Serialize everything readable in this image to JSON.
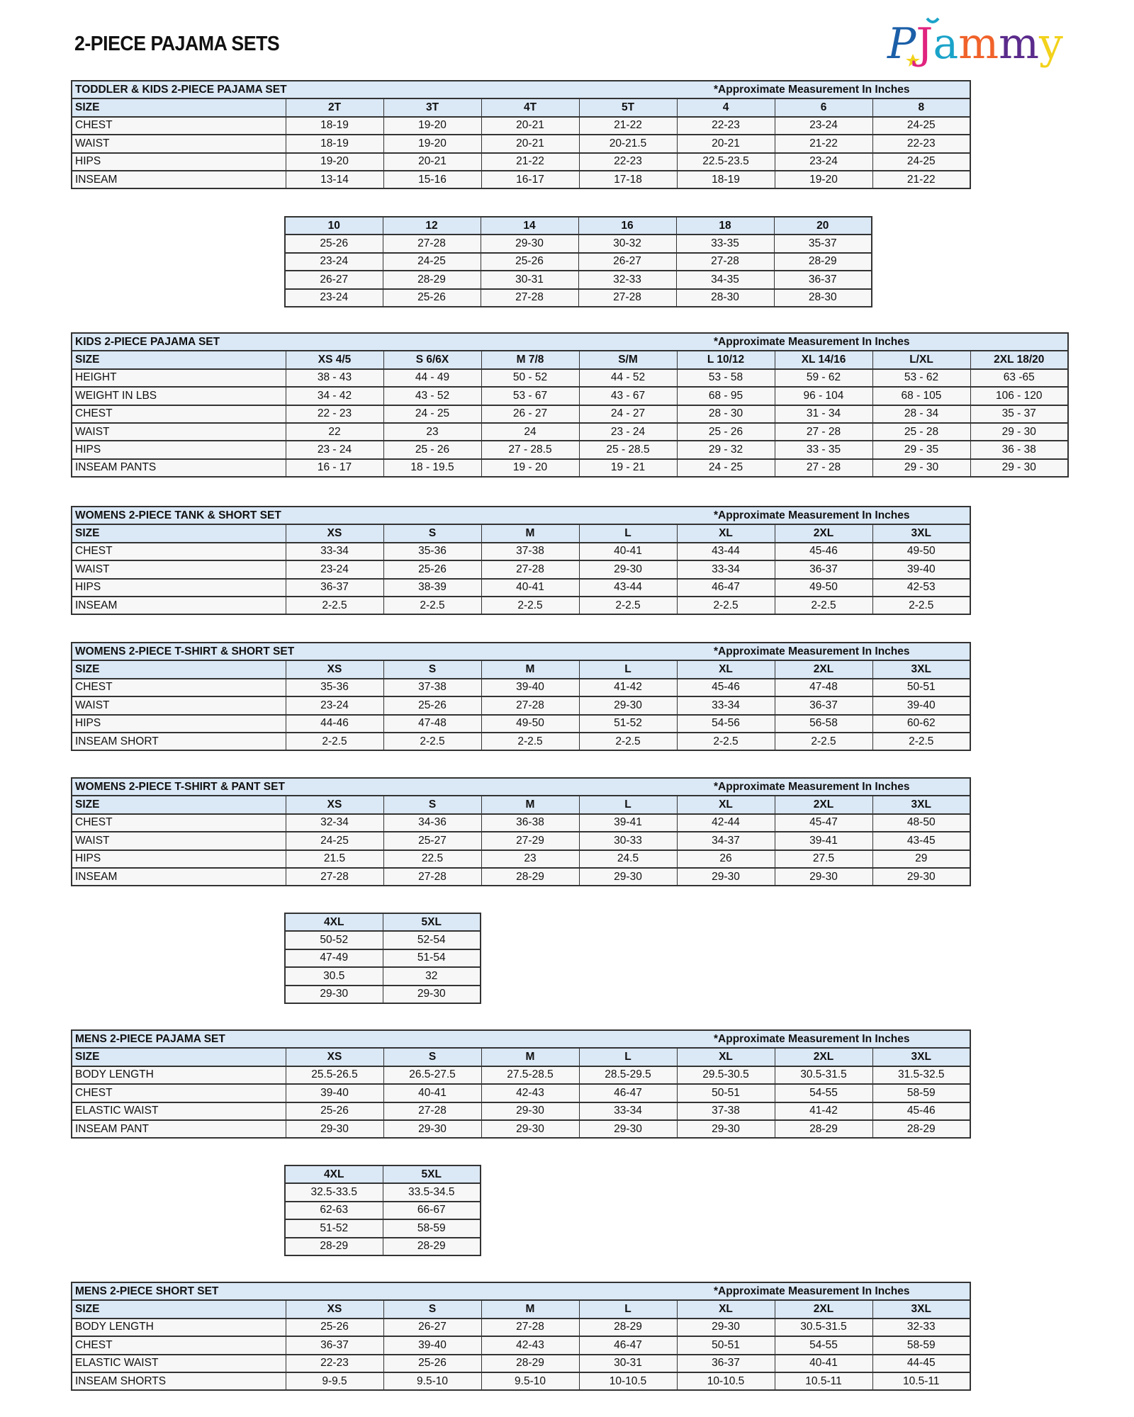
{
  "page_title": "2-PIECE PAJAMA SETS",
  "logo_text": "PJammy",
  "note": "*Approximate Measurement In Inches",
  "tables": [
    {
      "title": "TODDLER & KIDS 2-PIECE PAJAMA SET",
      "header": [
        "SIZE",
        "2T",
        "3T",
        "4T",
        "5T",
        "4",
        "6",
        "8"
      ],
      "rows": [
        [
          "CHEST",
          "18-19",
          "19-20",
          "20-21",
          "21-22",
          "22-23",
          "23-24",
          "24-25"
        ],
        [
          "WAIST",
          "18-19",
          "19-20",
          "20-21",
          "20-21.5",
          "20-21",
          "21-22",
          "22-23"
        ],
        [
          "HIPS",
          "19-20",
          "20-21",
          "21-22",
          "22-23",
          "22.5-23.5",
          "23-24",
          "24-25"
        ],
        [
          "INSEAM",
          "13-14",
          "15-16",
          "16-17",
          "17-18",
          "18-19",
          "19-20",
          "21-22"
        ]
      ]
    },
    {
      "continuation": true,
      "header": [
        "10",
        "12",
        "14",
        "16",
        "18",
        "20"
      ],
      "rows": [
        [
          "25-26",
          "27-28",
          "29-30",
          "30-32",
          "33-35",
          "35-37"
        ],
        [
          "23-24",
          "24-25",
          "25-26",
          "26-27",
          "27-28",
          "28-29"
        ],
        [
          "26-27",
          "28-29",
          "30-31",
          "32-33",
          "34-35",
          "36-37"
        ],
        [
          "23-24",
          "25-26",
          "27-28",
          "27-28",
          "28-30",
          "28-30"
        ]
      ]
    },
    {
      "title": "KIDS 2-PIECE PAJAMA SET",
      "header": [
        "SIZE",
        "XS 4/5",
        "S 6/6X",
        "M 7/8",
        "S/M",
        "L 10/12",
        "XL 14/16",
        "L/XL",
        "2XL 18/20"
      ],
      "rows": [
        [
          "HEIGHT",
          "38 - 43",
          "44 - 49",
          "50 - 52",
          "44 - 52",
          "53 - 58",
          "59 - 62",
          "53 - 62",
          "63 -65"
        ],
        [
          "WEIGHT IN LBS",
          "34 - 42",
          "43 - 52",
          "53 - 67",
          "43 - 67",
          "68 - 95",
          "96 - 104",
          "68 - 105",
          "106 - 120"
        ],
        [
          "CHEST",
          "22 - 23",
          "24 - 25",
          "26 - 27",
          "24 - 27",
          "28 - 30",
          "31 - 34",
          "28 - 34",
          "35 - 37"
        ],
        [
          "WAIST",
          "22",
          "23",
          "24",
          "23 - 24",
          "25 - 26",
          "27 - 28",
          "25 - 28",
          "29 - 30"
        ],
        [
          "HIPS",
          "23 - 24",
          "25 - 26",
          "27 - 28.5",
          "25 - 28.5",
          "29 - 32",
          "33 - 35",
          "29 - 35",
          "36 - 38"
        ],
        [
          "INSEAM PANTS",
          "16 - 17",
          "18 - 19.5",
          "19 - 20",
          "19 - 21",
          "24 - 25",
          "27 - 28",
          "29 - 30",
          "29 - 30"
        ]
      ]
    },
    {
      "title": "WOMENS 2-PIECE TANK & SHORT SET",
      "header": [
        "SIZE",
        "XS",
        "S",
        "M",
        "L",
        "XL",
        "2XL",
        "3XL"
      ],
      "rows": [
        [
          "CHEST",
          "33-34",
          "35-36",
          "37-38",
          "40-41",
          "43-44",
          "45-46",
          "49-50"
        ],
        [
          "WAIST",
          "23-24",
          "25-26",
          "27-28",
          "29-30",
          "33-34",
          "36-37",
          "39-40"
        ],
        [
          "HIPS",
          "36-37",
          "38-39",
          "40-41",
          "43-44",
          "46-47",
          "49-50",
          "42-53"
        ],
        [
          "INSEAM",
          "2-2.5",
          "2-2.5",
          "2-2.5",
          "2-2.5",
          "2-2.5",
          "2-2.5",
          "2-2.5"
        ]
      ]
    },
    {
      "title": "WOMENS 2-PIECE T-SHIRT & SHORT SET",
      "header": [
        "SIZE",
        "XS",
        "S",
        "M",
        "L",
        "XL",
        "2XL",
        "3XL"
      ],
      "rows": [
        [
          "CHEST",
          "35-36",
          "37-38",
          "39-40",
          "41-42",
          "45-46",
          "47-48",
          "50-51"
        ],
        [
          "WAIST",
          "23-24",
          "25-26",
          "27-28",
          "29-30",
          "33-34",
          "36-37",
          "39-40"
        ],
        [
          "HIPS",
          "44-46",
          "47-48",
          "49-50",
          "51-52",
          "54-56",
          "56-58",
          "60-62"
        ],
        [
          "INSEAM SHORT",
          "2-2.5",
          "2-2.5",
          "2-2.5",
          "2-2.5",
          "2-2.5",
          "2-2.5",
          "2-2.5"
        ]
      ]
    },
    {
      "title": "WOMENS 2-PIECE T-SHIRT & PANT SET",
      "header": [
        "SIZE",
        "XS",
        "S",
        "M",
        "L",
        "XL",
        "2XL",
        "3XL"
      ],
      "rows": [
        [
          "CHEST",
          "32-34",
          "34-36",
          "36-38",
          "39-41",
          "42-44",
          "45-47",
          "48-50"
        ],
        [
          "WAIST",
          "24-25",
          "25-27",
          "27-29",
          "30-33",
          "34-37",
          "39-41",
          "43-45"
        ],
        [
          "HIPS",
          "21.5",
          "22.5",
          "23",
          "24.5",
          "26",
          "27.5",
          "29"
        ],
        [
          "INSEAM",
          "27-28",
          "27-28",
          "28-29",
          "29-30",
          "29-30",
          "29-30",
          "29-30"
        ]
      ]
    },
    {
      "continuation": true,
      "header": [
        "4XL",
        "5XL"
      ],
      "rows": [
        [
          "50-52",
          "52-54"
        ],
        [
          "47-49",
          "51-54"
        ],
        [
          "30.5",
          "32"
        ],
        [
          "29-30",
          "29-30"
        ]
      ]
    },
    {
      "title": "MENS 2-PIECE PAJAMA SET",
      "header": [
        "SIZE",
        "XS",
        "S",
        "M",
        "L",
        "XL",
        "2XL",
        "3XL"
      ],
      "rows": [
        [
          "BODY LENGTH",
          "25.5-26.5",
          "26.5-27.5",
          "27.5-28.5",
          "28.5-29.5",
          "29.5-30.5",
          "30.5-31.5",
          "31.5-32.5"
        ],
        [
          "CHEST",
          "39-40",
          "40-41",
          "42-43",
          "46-47",
          "50-51",
          "54-55",
          "58-59"
        ],
        [
          "ELASTIC WAIST",
          "25-26",
          "27-28",
          "29-30",
          "33-34",
          "37-38",
          "41-42",
          "45-46"
        ],
        [
          "INSEAM PANT",
          "29-30",
          "29-30",
          "29-30",
          "29-30",
          "29-30",
          "28-29",
          "28-29"
        ]
      ]
    },
    {
      "continuation": true,
      "header": [
        "4XL",
        "5XL"
      ],
      "rows": [
        [
          "32.5-33.5",
          "33.5-34.5"
        ],
        [
          "62-63",
          "66-67"
        ],
        [
          "51-52",
          "58-59"
        ],
        [
          "28-29",
          "28-29"
        ]
      ]
    },
    {
      "title": "MENS 2-PIECE SHORT SET",
      "header": [
        "SIZE",
        "XS",
        "S",
        "M",
        "L",
        "XL",
        "2XL",
        "3XL"
      ],
      "rows": [
        [
          "BODY LENGTH",
          "25-26",
          "26-27",
          "27-28",
          "28-29",
          "29-30",
          "30.5-31.5",
          "32-33"
        ],
        [
          "CHEST",
          "36-37",
          "39-40",
          "42-43",
          "46-47",
          "50-51",
          "54-55",
          "58-59"
        ],
        [
          "ELASTIC WAIST",
          "22-23",
          "25-26",
          "28-29",
          "30-31",
          "36-37",
          "40-41",
          "44-45"
        ],
        [
          "INSEAM SHORTS",
          "9-9.5",
          "9.5-10",
          "9.5-10",
          "10-10.5",
          "10-10.5",
          "10.5-11",
          "10.5-11"
        ]
      ]
    }
  ],
  "colors": {
    "header_bg": "#dbe8f6",
    "row_bg": "#f7f7f7",
    "border": "#333333"
  }
}
